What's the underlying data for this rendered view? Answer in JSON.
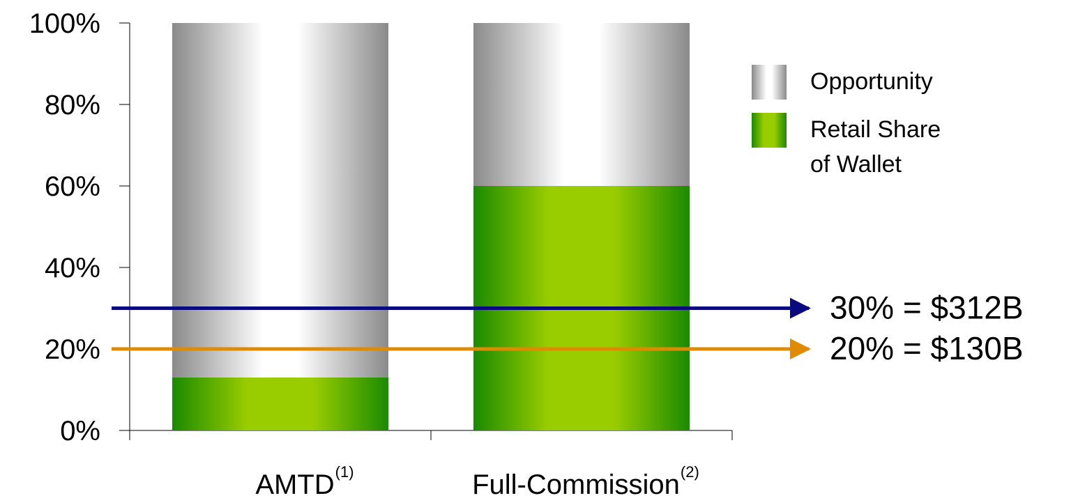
{
  "chart_data": {
    "type": "bar",
    "stacked": true,
    "categories": [
      "AMTD",
      "Full-Commission"
    ],
    "category_footnotes": [
      "(1)",
      "(2)"
    ],
    "series": [
      {
        "name": "Retail Share of Wallet",
        "values": [
          13,
          60
        ],
        "colors": [
          "#1a8a00",
          "#9acd00"
        ]
      },
      {
        "name": "Opportunity",
        "values": [
          87,
          40
        ],
        "colors": [
          "#8a8a8a",
          "#ffffff"
        ]
      }
    ],
    "ylim": [
      0,
      100
    ],
    "ytick_values": [
      0,
      20,
      40,
      60,
      80,
      100
    ],
    "ytick_labels": [
      "0%",
      "20%",
      "40%",
      "60%",
      "80%",
      "100%"
    ],
    "legend": {
      "placement": "top-right",
      "entries": [
        {
          "series": "Opportunity",
          "lines": [
            "Opportunity"
          ]
        },
        {
          "series": "Retail Share of Wallet",
          "lines": [
            "Retail Share",
            "of Wallet"
          ]
        }
      ]
    },
    "reference_lines": [
      {
        "y": 30,
        "label": "30% = $312B",
        "color": "#0a0a80"
      },
      {
        "y": 20,
        "label": "20% = $130B",
        "color": "#e08a00"
      }
    ]
  }
}
